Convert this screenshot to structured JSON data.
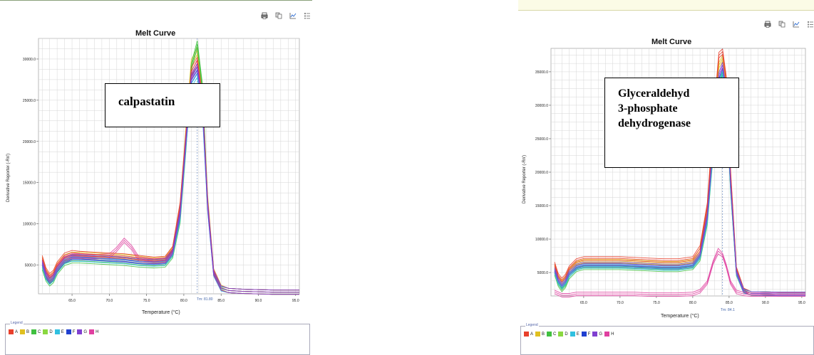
{
  "chart_data": [
    {
      "type": "line",
      "title": "Melt Curve",
      "xlabel": "Temperature (°C)",
      "ylabel": "Derivative Reporter (-Rn')",
      "xlim": [
        60.5,
        95.5
      ],
      "ylim": [
        1500,
        32500
      ],
      "x_ticks": [
        65.0,
        70.0,
        75.0,
        80.0,
        85.0,
        90.0,
        95.0
      ],
      "x_tick_labels": [
        "65.0",
        "70.0",
        "75.0",
        "80.0",
        "85.0",
        "90.0",
        "95.0"
      ],
      "y_ticks": [
        5000,
        10000,
        15000,
        20000,
        25000,
        30000
      ],
      "y_tick_labels": [
        "5000.0",
        "10000.0",
        "15000.0",
        "20000.0",
        "25000.0",
        "30000.0"
      ],
      "grid": true,
      "tm_label": "Tm: 81.80",
      "tm": 81.8,
      "annotation": "calpastatin",
      "legend": {
        "title": "Legend",
        "entries": [
          "A",
          "B",
          "C",
          "D",
          "E",
          "F",
          "G",
          "H"
        ]
      },
      "colors": [
        "#e8402c",
        "#e0c020",
        "#40c040",
        "#8ad840",
        "#30c0e0",
        "#2040d0",
        "#8040d0",
        "#e040a0"
      ],
      "series": [
        {
          "color": "#2040d0",
          "x": [
            61,
            61.5,
            62,
            62.5,
            63,
            64,
            65,
            66,
            68,
            70,
            72,
            74,
            76,
            77.5,
            78.5,
            79.5,
            80.3,
            81,
            81.8,
            82.5,
            83.2,
            84,
            85,
            86,
            88,
            92,
            95.5
          ],
          "y": [
            5200,
            3700,
            3000,
            3400,
            4400,
            5500,
            5900,
            5900,
            5800,
            5700,
            5600,
            5400,
            5300,
            5400,
            6500,
            11000,
            20000,
            27500,
            28700,
            24000,
            12000,
            4000,
            2200,
            1900,
            1800,
            1700,
            1700
          ]
        },
        {
          "color": "#e0c020",
          "x": [
            61,
            61.5,
            62,
            62.5,
            63,
            64,
            65,
            66,
            68,
            70,
            72,
            74,
            76,
            77.5,
            78.5,
            79.5,
            80.3,
            81,
            81.8,
            82.5,
            83.2,
            84,
            85,
            86,
            88,
            92,
            95.5
          ],
          "y": [
            5700,
            4200,
            3500,
            3900,
            4900,
            6000,
            6300,
            6300,
            6200,
            6100,
            6000,
            5800,
            5600,
            5700,
            6900,
            12000,
            21500,
            29500,
            31000,
            26000,
            13000,
            4300,
            2300,
            1900,
            1800,
            1700,
            1700
          ]
        },
        {
          "color": "#40c040",
          "x": [
            61,
            61.5,
            62,
            62.5,
            63,
            64,
            65,
            66,
            68,
            70,
            72,
            74,
            76,
            77.5,
            78.5,
            79.5,
            80.3,
            81,
            81.8,
            82.5,
            83.2,
            84,
            85,
            86,
            88,
            92,
            95.5
          ],
          "y": [
            4700,
            3300,
            2700,
            3100,
            4100,
            5200,
            5500,
            5500,
            5400,
            5300,
            5200,
            5000,
            4900,
            5000,
            6100,
            10500,
            19500,
            29000,
            31800,
            26500,
            12500,
            4100,
            2200,
            1900,
            1800,
            1700,
            1700
          ]
        },
        {
          "color": "#e040a0",
          "x": [
            61,
            61.5,
            62,
            62.5,
            63,
            64,
            65,
            66,
            68,
            70,
            71,
            72,
            73,
            74,
            76,
            77.5,
            78.5,
            79.5,
            80.3,
            81,
            81.8,
            82.5,
            83.2,
            84,
            85,
            86,
            88,
            92,
            95.5
          ],
          "y": [
            5400,
            4000,
            3300,
            3700,
            4700,
            5800,
            6100,
            6100,
            6000,
            6100,
            6900,
            8000,
            7100,
            5700,
            5500,
            5600,
            6700,
            11500,
            20500,
            28000,
            29500,
            25000,
            12500,
            4200,
            2200,
            1900,
            1800,
            1700,
            1700
          ]
        },
        {
          "color": "#30c0e0",
          "x": [
            61,
            61.5,
            62,
            62.5,
            63,
            64,
            65,
            66,
            68,
            70,
            72,
            74,
            76,
            77.5,
            78.5,
            79.5,
            80.3,
            81,
            81.8,
            82.5,
            83.2,
            84,
            85,
            86,
            88,
            92,
            95.5
          ],
          "y": [
            5000,
            3500,
            2900,
            3300,
            4300,
            5400,
            5700,
            5700,
            5600,
            5500,
            5400,
            5200,
            5100,
            5200,
            6300,
            10800,
            19800,
            27000,
            28200,
            23500,
            11800,
            3900,
            2100,
            1900,
            1800,
            1700,
            1700
          ]
        },
        {
          "color": "#e8402c",
          "x": [
            61,
            61.5,
            62,
            62.5,
            63,
            64,
            65,
            66,
            68,
            70,
            72,
            74,
            76,
            77.5,
            78.5,
            79.5,
            80.3,
            81,
            81.8,
            82.5,
            83.2,
            84,
            85,
            86,
            88,
            92,
            95.5
          ],
          "y": [
            5900,
            4400,
            3700,
            4100,
            5100,
            6200,
            6500,
            6400,
            6300,
            6200,
            6100,
            5900,
            5700,
            5800,
            7000,
            12200,
            21000,
            28500,
            29800,
            25000,
            12300,
            4100,
            2200,
            1900,
            1800,
            1700,
            1700
          ]
        },
        {
          "color": "#8040d0",
          "x": [
            61,
            61.5,
            62,
            62.5,
            63,
            64,
            65,
            66,
            68,
            70,
            72,
            74,
            76,
            77.5,
            78.5,
            79.5,
            80.3,
            81,
            81.8,
            82.5,
            83.2,
            84,
            85,
            86,
            88,
            92,
            95.5
          ],
          "y": [
            5300,
            3800,
            3100,
            3500,
            4500,
            5600,
            6000,
            6000,
            5900,
            5800,
            5700,
            5500,
            5400,
            5500,
            6600,
            11300,
            20300,
            27800,
            29000,
            24300,
            12100,
            4000,
            2200,
            1900,
            1800,
            1700,
            1700
          ]
        }
      ]
    },
    {
      "type": "line",
      "title": "Melt Curve",
      "xlabel": "Temperature (°C)",
      "ylabel": "Derivative Reporter (-Rn')",
      "xlim": [
        60.5,
        95.5
      ],
      "ylim": [
        1500,
        38500
      ],
      "x_ticks": [
        65.0,
        70.0,
        75.0,
        80.0,
        85.0,
        90.0,
        95.0
      ],
      "x_tick_labels": [
        "65.0",
        "70.0",
        "75.0",
        "80.0",
        "85.0",
        "90.0",
        "95.0"
      ],
      "y_ticks": [
        5000,
        10000,
        15000,
        20000,
        25000,
        30000,
        35000
      ],
      "y_tick_labels": [
        "5000.0",
        "10000.0",
        "15000.0",
        "20000.0",
        "25000.0",
        "30000.0",
        "35000.0"
      ],
      "grid": true,
      "tm_label": "Tm: 84.1",
      "tm": 84.1,
      "annotation": [
        "Glyceraldehyd",
        "3-phosphate",
        "dehydrogenase"
      ],
      "legend": {
        "title": "Legend",
        "entries": [
          "A",
          "B",
          "C",
          "D",
          "E",
          "F",
          "G",
          "H"
        ]
      },
      "colors": [
        "#e8402c",
        "#e0c020",
        "#40c040",
        "#8ad840",
        "#30c0e0",
        "#2040d0",
        "#8040d0",
        "#e040a0"
      ],
      "series": [
        {
          "color": "#2040d0",
          "x": [
            61,
            61.5,
            62,
            62.5,
            63,
            64,
            65,
            66,
            68,
            70,
            72,
            74,
            76,
            78,
            80,
            81,
            82,
            83,
            83.6,
            84.1,
            84.6,
            85.2,
            86,
            87,
            88,
            92,
            95.5
          ],
          "y": [
            5300,
            3700,
            3000,
            3600,
            4800,
            5800,
            6100,
            6100,
            6100,
            6100,
            6000,
            5900,
            5800,
            5800,
            6100,
            7500,
            13000,
            26000,
            33500,
            35000,
            31000,
            18000,
            5000,
            2300,
            1900,
            1800,
            1800
          ]
        },
        {
          "color": "#e0c020",
          "x": [
            61,
            61.5,
            62,
            62.5,
            63,
            64,
            65,
            66,
            68,
            70,
            72,
            74,
            76,
            78,
            80,
            81,
            82,
            83,
            83.6,
            84.1,
            84.6,
            85.2,
            86,
            87,
            88,
            92,
            95.5
          ],
          "y": [
            5900,
            4200,
            3500,
            4100,
            5300,
            6400,
            6700,
            6700,
            6700,
            6700,
            6600,
            6500,
            6400,
            6400,
            6700,
            8200,
            14500,
            29000,
            36000,
            37000,
            33000,
            19500,
            5400,
            2400,
            1900,
            1800,
            1800
          ]
        },
        {
          "color": "#40c040",
          "x": [
            61,
            61.5,
            62,
            62.5,
            63,
            64,
            65,
            66,
            68,
            70,
            72,
            74,
            76,
            78,
            80,
            81,
            82,
            83,
            83.6,
            84.1,
            84.6,
            85.2,
            86,
            87,
            88,
            92,
            95.5
          ],
          "y": [
            4900,
            3200,
            2400,
            3000,
            4300,
            5400,
            5700,
            5700,
            5700,
            5700,
            5600,
            5500,
            5400,
            5400,
            5700,
            7000,
            12500,
            25500,
            33000,
            34500,
            30500,
            17500,
            4800,
            2200,
            1900,
            1800,
            1800
          ]
        },
        {
          "color": "#e8402c",
          "x": [
            61,
            61.5,
            62,
            62.5,
            63,
            64,
            65,
            66,
            68,
            70,
            72,
            74,
            76,
            78,
            80,
            81,
            82,
            83,
            83.6,
            84.1,
            84.6,
            85.2,
            86,
            87,
            88,
            92,
            95.5
          ],
          "y": [
            6300,
            4600,
            3900,
            4500,
            5700,
            6800,
            7100,
            7100,
            7100,
            7100,
            7000,
            6900,
            6800,
            6800,
            7100,
            8600,
            15000,
            30000,
            37500,
            38000,
            34000,
            20000,
            5600,
            2400,
            1900,
            1800,
            1800
          ]
        },
        {
          "color": "#30c0e0",
          "x": [
            61,
            61.5,
            62,
            62.5,
            63,
            64,
            65,
            66,
            68,
            70,
            72,
            74,
            76,
            78,
            80,
            81,
            82,
            83,
            83.6,
            84.1,
            84.6,
            85.2,
            86,
            87,
            88,
            92,
            95.5
          ],
          "y": [
            5100,
            3500,
            2800,
            3400,
            4600,
            5600,
            5900,
            5900,
            5900,
            5900,
            5800,
            5700,
            5600,
            5600,
            5900,
            7300,
            12800,
            25800,
            33200,
            34700,
            30700,
            17800,
            4900,
            2200,
            1900,
            1800,
            1800
          ]
        },
        {
          "color": "#8040d0",
          "x": [
            61,
            61.5,
            62,
            62.5,
            63,
            64,
            65,
            66,
            68,
            70,
            72,
            74,
            76,
            78,
            80,
            81,
            82,
            83,
            83.6,
            84.1,
            84.6,
            85.2,
            86,
            87,
            88,
            92,
            95.5
          ],
          "y": [
            5500,
            3900,
            3200,
            3800,
            5000,
            6000,
            6300,
            6300,
            6300,
            6300,
            6200,
            6100,
            6000,
            6000,
            6300,
            7700,
            13500,
            27000,
            34500,
            36000,
            32000,
            18500,
            5100,
            2300,
            1900,
            1800,
            1800
          ]
        },
        {
          "color": "#e040a0",
          "x": [
            61,
            62,
            63,
            64,
            66,
            68,
            70,
            72,
            74,
            76,
            78,
            80,
            81,
            82,
            82.8,
            83.5,
            84.1,
            84.6,
            85.2,
            86,
            87,
            88,
            92,
            95.5
          ],
          "y": [
            2100,
            1600,
            1600,
            1800,
            1800,
            1800,
            1800,
            1800,
            1700,
            1700,
            1700,
            1800,
            2200,
            3500,
            6500,
            8200,
            7600,
            6000,
            3500,
            2100,
            1800,
            1700,
            1700,
            1700
          ]
        }
      ]
    }
  ]
}
